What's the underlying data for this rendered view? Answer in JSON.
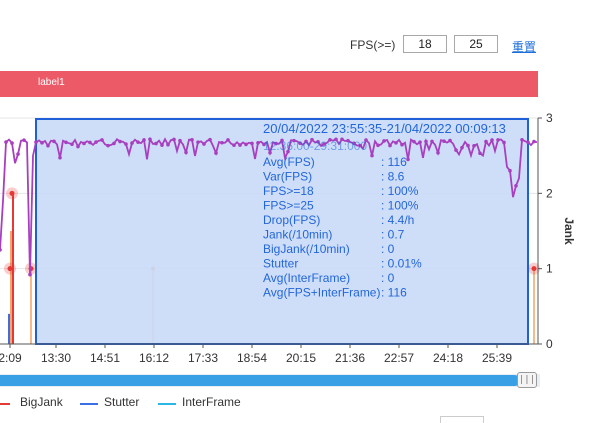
{
  "filter": {
    "label": "FPS(>=)",
    "threshold_1": "18",
    "threshold_2": "25",
    "reset_label": "重置"
  },
  "label_bar": {
    "text": "label1",
    "color": "#ec5a68"
  },
  "colors": {
    "fps_line": "#a83fbf",
    "selection_fill": "#c9daf8",
    "selection_border": "#1f5fd8",
    "stats_text": "#2366d9",
    "jank": "#ef8a3c",
    "bigjank": "#e53935",
    "stutter": "#3b6fe8",
    "interframe": "#2cb6e6",
    "scrollbar": "#3aa0e6"
  },
  "chart_data": {
    "type": "line",
    "x_ticks": [
      "2:09",
      "13:30",
      "14:51",
      "16:12",
      "17:33",
      "18:54",
      "20:15",
      "21:36",
      "22:57",
      "24:18",
      "25:39"
    ],
    "y_right_axis": {
      "label": "Jank",
      "ticks": [
        "0",
        "1",
        "2",
        "3"
      ],
      "ylim": [
        0,
        3
      ]
    },
    "series": [
      {
        "name": "Jank",
        "points": [
          [
            "2:09",
            1
          ],
          [
            "16:12",
            1
          ]
        ]
      },
      {
        "name": "BigJank",
        "points": [
          [
            "2:09",
            2
          ],
          [
            "2:09",
            1
          ]
        ]
      },
      {
        "name": "Stutter",
        "points": [
          [
            "2:09",
            0.4
          ]
        ]
      },
      {
        "name": "InterFrame",
        "points": []
      }
    ],
    "fps_series_note_visible": false
  },
  "selection": {
    "time_range": "20/04/2022 23:55:35-21/04/2022 00:09:13",
    "overlay_text": "12:36:00-29:31:000",
    "stats": [
      {
        "key": "Avg(FPS)",
        "value": ": 116"
      },
      {
        "key": "Var(FPS)",
        "value": ": 8.6"
      },
      {
        "key": "FPS>=18",
        "value": ": 100%"
      },
      {
        "key": "FPS>=25",
        "value": ": 100%"
      },
      {
        "key": "Drop(FPS)",
        "value": ": 4.4/h"
      },
      {
        "key": "Jank(/10min)",
        "value": ": 0.7"
      },
      {
        "key": "BigJank(/10min)",
        "value": ": 0"
      },
      {
        "key": "Stutter",
        "value": ": 0.01%"
      },
      {
        "key": "Avg(InterFrame)",
        "value": ": 0"
      },
      {
        "key": "Avg(FPS+InterFrame)",
        "value": ": 116"
      }
    ]
  },
  "legend": [
    {
      "name": "BigJank",
      "color_key": "bigjank"
    },
    {
      "name": "Stutter",
      "color_key": "stutter"
    },
    {
      "name": "InterFrame",
      "color_key": "interframe"
    }
  ],
  "scroll_handle_glyph": "|||"
}
